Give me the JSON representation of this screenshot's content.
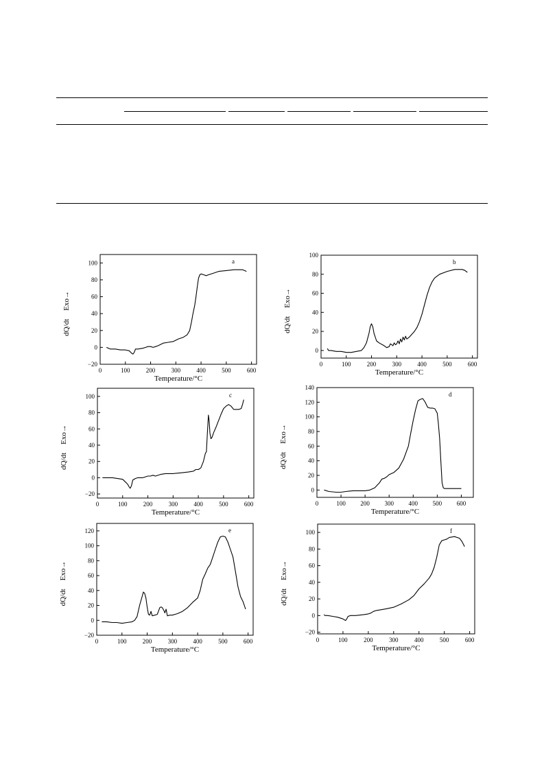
{
  "chart_data": [
    {
      "type": "line",
      "panel_label": "a",
      "xlabel": "Temperature/°C",
      "ylabel": "dQ/dt",
      "ylabel_suffix": "Exo→",
      "xlim": [
        0,
        620
      ],
      "ylim": [
        -20,
        110
      ],
      "xticks": [
        0,
        100,
        200,
        300,
        400,
        500,
        600
      ],
      "yticks": [
        -20,
        0,
        20,
        40,
        60,
        80,
        100
      ],
      "x": [
        25,
        40,
        60,
        80,
        100,
        115,
        125,
        130,
        135,
        140,
        150,
        170,
        180,
        190,
        200,
        210,
        220,
        230,
        250,
        270,
        290,
        310,
        330,
        345,
        355,
        362,
        368,
        375,
        380,
        385,
        390,
        395,
        400,
        410,
        420,
        430,
        450,
        470,
        500,
        530,
        550,
        565,
        580
      ],
      "y": [
        0,
        -2,
        -2,
        -3,
        -3,
        -4,
        -7,
        -8,
        -6,
        -2,
        -2,
        -1,
        0,
        1,
        1,
        0,
        1,
        2,
        5,
        6,
        7,
        10,
        12,
        15,
        20,
        30,
        40,
        50,
        60,
        72,
        82,
        86,
        87,
        86,
        85,
        86,
        88,
        90,
        91,
        92,
        92,
        92,
        90
      ]
    },
    {
      "type": "line",
      "panel_label": "b",
      "xlabel": "Temperature/°C",
      "ylabel": "dQ/dt",
      "ylabel_suffix": "Exo→",
      "xlim": [
        0,
        620
      ],
      "ylim": [
        -8,
        100
      ],
      "xticks": [
        0,
        100,
        200,
        300,
        400,
        500,
        600
      ],
      "yticks": [
        0,
        20,
        40,
        60,
        80,
        100
      ],
      "x": [
        25,
        30,
        40,
        60,
        80,
        100,
        110,
        120,
        140,
        160,
        170,
        180,
        190,
        195,
        200,
        205,
        210,
        220,
        230,
        250,
        260,
        270,
        275,
        280,
        285,
        290,
        295,
        300,
        305,
        310,
        315,
        320,
        325,
        330,
        335,
        340,
        345,
        350,
        360,
        370,
        380,
        390,
        400,
        410,
        420,
        430,
        440,
        450,
        470,
        500,
        530,
        560,
        570,
        580
      ],
      "y": [
        2,
        0,
        0,
        -1,
        -1,
        -2,
        -2,
        -2,
        -1,
        0,
        3,
        8,
        18,
        25,
        28,
        25,
        18,
        10,
        8,
        5,
        3,
        4,
        7,
        6,
        5,
        8,
        6,
        7,
        10,
        7,
        12,
        9,
        14,
        11,
        15,
        12,
        13,
        14,
        17,
        20,
        24,
        30,
        38,
        48,
        58,
        66,
        72,
        76,
        80,
        83,
        85,
        85,
        84,
        82
      ]
    },
    {
      "type": "line",
      "panel_label": "c",
      "xlabel": "Temperature/°C",
      "ylabel": "dQ/dt",
      "ylabel_suffix": "Exo→",
      "xlim": [
        0,
        620
      ],
      "ylim": [
        -25,
        110
      ],
      "xticks": [
        0,
        100,
        200,
        300,
        400,
        500,
        600
      ],
      "yticks": [
        -20,
        0,
        20,
        40,
        60,
        80,
        100
      ],
      "x": [
        20,
        40,
        60,
        80,
        100,
        110,
        120,
        125,
        130,
        135,
        140,
        150,
        160,
        180,
        200,
        210,
        220,
        230,
        250,
        270,
        300,
        330,
        360,
        380,
        390,
        400,
        410,
        420,
        428,
        432,
        436,
        440,
        443,
        446,
        450,
        455,
        460,
        470,
        480,
        490,
        500,
        510,
        520,
        530,
        540,
        560,
        570,
        575,
        580
      ],
      "y": [
        0,
        0,
        0,
        -1,
        -2,
        -5,
        -8,
        -11,
        -13,
        -10,
        -3,
        -1,
        0,
        0,
        2,
        2,
        3,
        2,
        4,
        5,
        5,
        6,
        7,
        8,
        10,
        10,
        12,
        20,
        30,
        32,
        55,
        77,
        70,
        55,
        48,
        50,
        55,
        62,
        70,
        78,
        85,
        88,
        90,
        88,
        84,
        84,
        85,
        90,
        96
      ]
    },
    {
      "type": "line",
      "panel_label": "d",
      "xlabel": "Temperature/°C",
      "ylabel": "dQ/dt",
      "ylabel_suffix": "Exo→",
      "xlim": [
        0,
        650
      ],
      "ylim": [
        -10,
        140
      ],
      "xticks": [
        0,
        100,
        200,
        300,
        400,
        500,
        600
      ],
      "yticks": [
        0,
        20,
        40,
        60,
        80,
        100,
        120,
        140
      ],
      "x": [
        30,
        50,
        80,
        100,
        120,
        150,
        180,
        200,
        220,
        240,
        260,
        270,
        280,
        290,
        300,
        320,
        340,
        360,
        380,
        390,
        400,
        410,
        420,
        430,
        440,
        450,
        460,
        470,
        480,
        490,
        500,
        505,
        510,
        515,
        520,
        525,
        530,
        540,
        560,
        590,
        600
      ],
      "y": [
        0,
        -2,
        -3,
        -3,
        -2,
        -1,
        -1,
        -1,
        0,
        3,
        10,
        15,
        16,
        18,
        21,
        24,
        30,
        42,
        60,
        78,
        95,
        110,
        122,
        124,
        125,
        120,
        113,
        112,
        112,
        111,
        105,
        90,
        70,
        40,
        10,
        3,
        2,
        2,
        2,
        2,
        2
      ]
    },
    {
      "type": "line",
      "panel_label": "e",
      "xlabel": "Temperature/°C",
      "ylabel": "dQ/dt",
      "ylabel_suffix": "Exo→",
      "xlim": [
        0,
        620
      ],
      "ylim": [
        -20,
        130
      ],
      "xticks": [
        0,
        100,
        200,
        300,
        400,
        500,
        600
      ],
      "yticks": [
        -20,
        0,
        20,
        40,
        60,
        80,
        100,
        120
      ],
      "x": [
        20,
        40,
        60,
        80,
        100,
        120,
        140,
        150,
        160,
        170,
        180,
        185,
        190,
        195,
        200,
        205,
        210,
        215,
        220,
        230,
        240,
        250,
        255,
        260,
        265,
        270,
        275,
        280,
        290,
        300,
        320,
        340,
        360,
        380,
        400,
        410,
        420,
        430,
        440,
        450,
        460,
        470,
        480,
        490,
        500,
        510,
        520,
        530,
        540,
        550,
        560,
        570,
        580,
        590
      ],
      "y": [
        -2,
        -2,
        -3,
        -3,
        -4,
        -3,
        -2,
        0,
        5,
        20,
        32,
        38,
        36,
        30,
        18,
        8,
        7,
        12,
        6,
        7,
        8,
        17,
        18,
        17,
        14,
        10,
        15,
        6,
        7,
        7,
        9,
        12,
        17,
        24,
        30,
        40,
        55,
        62,
        70,
        75,
        85,
        95,
        105,
        112,
        113,
        112,
        105,
        95,
        85,
        65,
        45,
        32,
        25,
        15
      ]
    },
    {
      "type": "line",
      "panel_label": "f",
      "xlabel": "Temperature/°C",
      "ylabel": "dQ/dt",
      "ylabel_suffix": "Exo→",
      "xlim": [
        0,
        620
      ],
      "ylim": [
        -22,
        110
      ],
      "xticks": [
        0,
        100,
        200,
        300,
        400,
        500,
        600
      ],
      "yticks": [
        -20,
        0,
        20,
        40,
        60,
        80,
        100
      ],
      "x": [
        25,
        30,
        40,
        60,
        80,
        100,
        110,
        115,
        120,
        130,
        150,
        180,
        200,
        210,
        220,
        230,
        250,
        270,
        300,
        330,
        360,
        380,
        400,
        420,
        440,
        450,
        460,
        470,
        480,
        490,
        500,
        510,
        520,
        540,
        560,
        570,
        580
      ],
      "y": [
        1,
        0,
        0,
        -1,
        -2,
        -4,
        -6,
        -4,
        -1,
        0,
        0,
        1,
        2,
        3,
        5,
        6,
        7,
        8,
        10,
        14,
        19,
        24,
        32,
        38,
        45,
        50,
        58,
        70,
        85,
        90,
        91,
        92,
        94,
        95,
        93,
        89,
        83
      ]
    }
  ]
}
